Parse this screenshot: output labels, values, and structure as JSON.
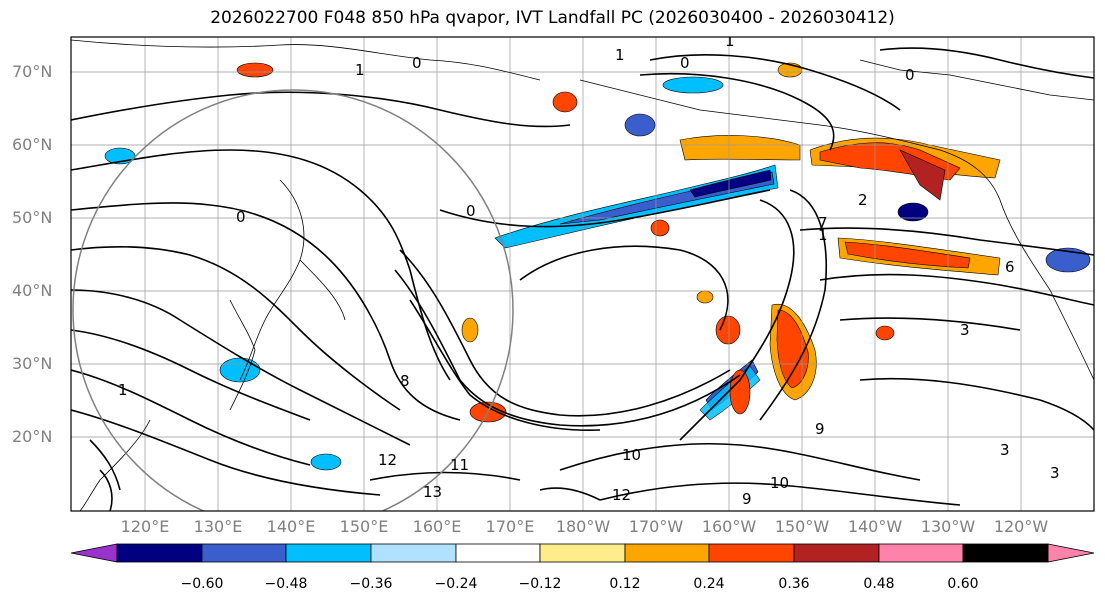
{
  "title": "2026022700 F048 850 hPa qvapor, IVT Landfall PC (2026030400 - 2026030412)",
  "map": {
    "lat_labels": [
      "70°N",
      "60°N",
      "50°N",
      "40°N",
      "30°N",
      "20°N"
    ],
    "lon_labels": [
      "120°E",
      "130°E",
      "140°E",
      "150°E",
      "160°E",
      "170°E",
      "180°W",
      "170°W",
      "160°W",
      "150°W",
      "140°W",
      "130°W",
      "120°W"
    ],
    "contour_labels": [
      "0",
      "0",
      "0",
      "0",
      "0",
      "1",
      "1",
      "1",
      "1",
      "1",
      "2",
      "3",
      "3",
      "3",
      "6",
      "7",
      "8",
      "9",
      "9",
      "10",
      "10",
      "11",
      "12",
      "12",
      "13"
    ]
  },
  "colorbar": {
    "colors": [
      "#9933cc",
      "#000080",
      "#3a5fcd",
      "#00bfff",
      "#b0e2ff",
      "#ffffff",
      "#ffec8b",
      "#ffa500",
      "#ff4500",
      "#b22222",
      "#ff82ab"
    ],
    "ticks": [
      "−0.60",
      "−0.48",
      "−0.36",
      "−0.24",
      "−0.12",
      "0.12",
      "0.24",
      "0.36",
      "0.48",
      "0.60"
    ]
  }
}
